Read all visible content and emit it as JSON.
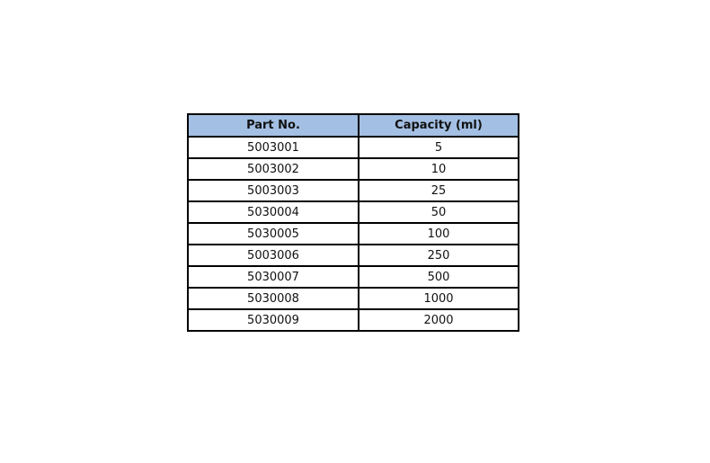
{
  "table": {
    "headers": [
      "Part No.",
      "Capacity (ml)"
    ],
    "header_color": "#a3bfe3",
    "rows": [
      [
        "5003001",
        "5"
      ],
      [
        "5003002",
        "10"
      ],
      [
        "5003003",
        "25"
      ],
      [
        "5030004",
        "50"
      ],
      [
        "5030005",
        "100"
      ],
      [
        "5003006",
        "250"
      ],
      [
        "5030007",
        "500"
      ],
      [
        "5030008",
        "1000"
      ],
      [
        "5030009",
        "2000"
      ]
    ]
  }
}
